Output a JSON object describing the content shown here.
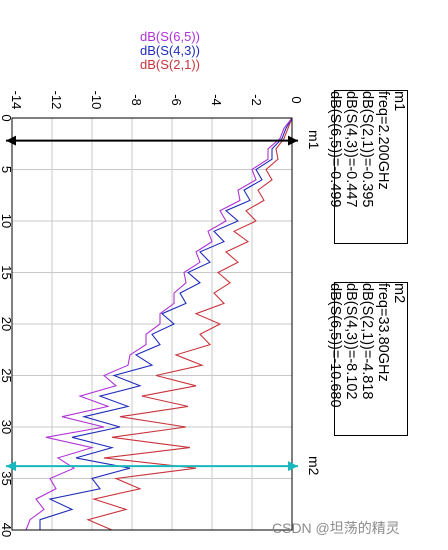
{
  "legend": {
    "s65": "dB(S(6,5))",
    "s43": "dB(S(4,3))",
    "s21": "dB(S(2,1))"
  },
  "colors": {
    "s65": "#b033d6",
    "s43": "#1f2db8",
    "s21": "#c8343b",
    "m1_line": "#000000",
    "m2_line": "#19b8be",
    "grid": "#c8c8c8"
  },
  "markers": {
    "m1": {
      "name": "m1",
      "lines": [
        "m1",
        "freq=2.200GHz",
        "dB(S(2,1))=-0.395",
        "dB(S(4,3))=-0.447",
        "dB(S(6,5))=-0.499"
      ]
    },
    "m2": {
      "name": "m2",
      "lines": [
        "m2",
        "freq=33.80GHz",
        "dB(S(2,1))=-4.818",
        "dB(S(4,3))=-8.102",
        "dB(S(6,5))=-10.680"
      ]
    }
  },
  "watermark": "CSDN @坦荡的精灵",
  "chart_data": {
    "type": "line",
    "orientation": "rotated-90",
    "freq_range": [
      0,
      40
    ],
    "db_range": [
      -14,
      0
    ],
    "freq_ticks": [
      0,
      5,
      10,
      15,
      20,
      25,
      30,
      35,
      40
    ],
    "db_ticks": [
      0,
      -2,
      -4,
      -6,
      -8,
      -10,
      -12,
      -14
    ],
    "grid": true,
    "legend_position": "top",
    "markers": [
      {
        "name": "m1",
        "freq": 2.2
      },
      {
        "name": "m2",
        "freq": 33.8
      }
    ],
    "x": [
      0,
      1,
      2,
      3,
      4,
      5,
      6,
      7,
      8,
      9,
      10,
      11,
      12,
      13,
      14,
      15,
      16,
      17,
      18,
      19,
      20,
      21,
      22,
      23,
      24,
      25,
      26,
      27,
      28,
      29,
      30,
      31,
      32,
      33,
      34,
      35,
      36,
      37,
      38,
      39,
      40
    ],
    "series": [
      {
        "name": "dB(S(2,1))",
        "values": [
          0,
          -0.2,
          -0.4,
          -0.8,
          -0.7,
          -1.3,
          -1.0,
          -1.7,
          -1.4,
          -2.3,
          -1.8,
          -2.9,
          -2.2,
          -3.3,
          -2.7,
          -3.7,
          -3.1,
          -3.9,
          -3.4,
          -4.8,
          -3.6,
          -4.6,
          -4.1,
          -5.8,
          -4.5,
          -6.8,
          -4.8,
          -7.5,
          -5.2,
          -8.6,
          -5.3,
          -9.0,
          -5.1,
          -9.4,
          -4.8,
          -8.8,
          -7.6,
          -9.9,
          -8.3,
          -10.2,
          -9.0
        ]
      },
      {
        "name": "dB(S(4,3))",
        "values": [
          0,
          -0.3,
          -0.5,
          -1.0,
          -1.0,
          -1.8,
          -1.5,
          -2.4,
          -2.1,
          -3.3,
          -2.7,
          -3.9,
          -3.4,
          -4.6,
          -4.1,
          -5.2,
          -4.6,
          -5.6,
          -5.3,
          -6.5,
          -5.9,
          -7.0,
          -6.6,
          -7.8,
          -7.0,
          -8.9,
          -7.6,
          -9.6,
          -8.2,
          -10.4,
          -8.6,
          -11.0,
          -9.0,
          -10.8,
          -8.1,
          -10.0,
          -9.6,
          -12.1,
          -11.0,
          -12.6,
          -12.6
        ]
      },
      {
        "name": "dB(S(6,5))",
        "values": [
          0,
          -0.4,
          -0.6,
          -1.2,
          -1.2,
          -2.0,
          -1.8,
          -2.7,
          -2.6,
          -3.6,
          -3.3,
          -4.2,
          -4.0,
          -4.8,
          -4.6,
          -5.4,
          -5.3,
          -5.9,
          -5.9,
          -6.6,
          -6.6,
          -7.3,
          -7.3,
          -8.1,
          -8.2,
          -9.4,
          -8.8,
          -10.6,
          -9.2,
          -11.5,
          -9.4,
          -12.3,
          -10.0,
          -11.7,
          -10.9,
          -12.1,
          -11.8,
          -12.8,
          -12.4,
          -13.1,
          -13.3
        ]
      }
    ]
  }
}
